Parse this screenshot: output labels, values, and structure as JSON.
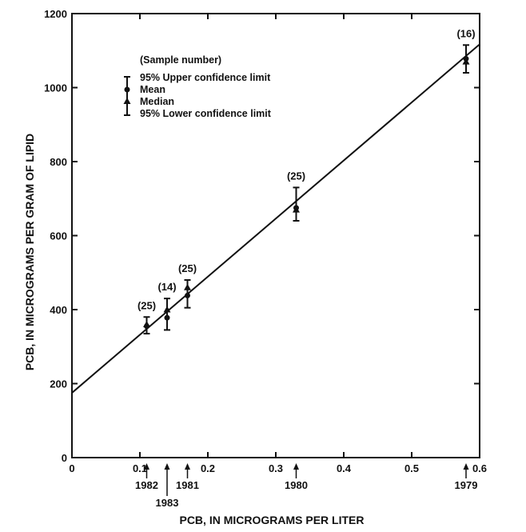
{
  "chart_data": {
    "type": "scatter",
    "xlabel": "PCB, IN MICROGRAMS PER LITER",
    "ylabel": "PCB, IN MICROGRAMS PER GRAM OF LIPID",
    "xlim": [
      0,
      0.6
    ],
    "ylim": [
      0,
      1200
    ],
    "x_ticks": [
      0,
      0.1,
      0.2,
      0.3,
      0.4,
      0.5,
      0.6
    ],
    "x_tick_labels": [
      "0",
      "0.1",
      "0.2",
      "0.3",
      "0.4",
      "0.5",
      "0.6"
    ],
    "y_ticks": [
      0,
      200,
      400,
      600,
      800,
      1000,
      1200
    ],
    "y_tick_labels": [
      "0",
      "200",
      "400",
      "600",
      "800",
      "1000",
      "1200"
    ],
    "grid": false,
    "legend": {
      "placement": "top-left",
      "sample_number_label": "(Sample number)",
      "upper_label": "95% Upper confidence limit",
      "mean_label": "Mean",
      "median_label": "Median",
      "lower_label": "95% Lower confidence limit"
    },
    "points": [
      {
        "year": "1982",
        "x": 0.11,
        "mean": 355,
        "median": 360,
        "upper": 380,
        "lower": 335,
        "n_label": "(25)"
      },
      {
        "year": "1983",
        "x": 0.14,
        "mean": 378,
        "median": 400,
        "upper": 430,
        "lower": 345,
        "n_label": "(14)"
      },
      {
        "year": "1981",
        "x": 0.17,
        "mean": 438,
        "median": 460,
        "upper": 480,
        "lower": 405,
        "n_label": "(25)"
      },
      {
        "year": "1980",
        "x": 0.33,
        "mean": 675,
        "median": 670,
        "upper": 730,
        "lower": 640,
        "n_label": "(25)"
      },
      {
        "year": "1979",
        "x": 0.58,
        "mean": 1078,
        "median": 1070,
        "upper": 1115,
        "lower": 1040,
        "n_label": "(16)"
      }
    ],
    "regression_line": {
      "intercept": 175,
      "slope": 1570
    }
  }
}
